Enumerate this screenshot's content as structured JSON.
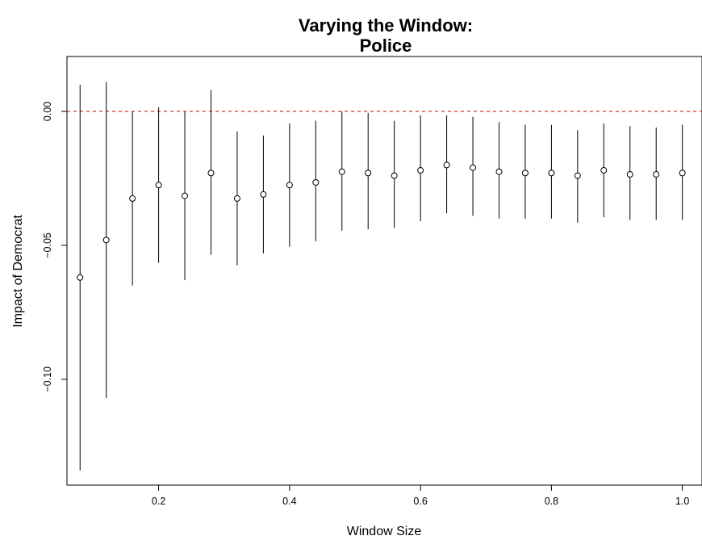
{
  "chart_data": {
    "type": "scatter",
    "title_line1": "Varying the Window:",
    "title_line2": "Police",
    "xlabel": "Window Size",
    "ylabel": "Impact of Democrat",
    "xlim": [
      0.06,
      1.03
    ],
    "ylim": [
      -0.1395,
      0.0205
    ],
    "x_ticks": [
      {
        "value": 0.2,
        "label": "0.2"
      },
      {
        "value": 0.4,
        "label": "0.4"
      },
      {
        "value": 0.6,
        "label": "0.6"
      },
      {
        "value": 0.8,
        "label": "0.8"
      },
      {
        "value": 1.0,
        "label": "1.0"
      }
    ],
    "y_ticks": [
      {
        "value": 0.0,
        "label": "0.00"
      },
      {
        "value": -0.05,
        "label": "−0.05"
      },
      {
        "value": -0.1,
        "label": "−0.10"
      }
    ],
    "reference_line": {
      "y": 0.0,
      "color": "#cc0000",
      "style": "dashed"
    },
    "points": [
      {
        "x": 0.08,
        "y": -0.062,
        "low": -0.134,
        "high": 0.01
      },
      {
        "x": 0.12,
        "y": -0.048,
        "low": -0.107,
        "high": 0.011
      },
      {
        "x": 0.16,
        "y": -0.0325,
        "low": -0.065,
        "high": 0.0
      },
      {
        "x": 0.2,
        "y": -0.0275,
        "low": -0.0565,
        "high": 0.0015
      },
      {
        "x": 0.24,
        "y": -0.0315,
        "low": -0.063,
        "high": 0.0
      },
      {
        "x": 0.28,
        "y": -0.023,
        "low": -0.0535,
        "high": 0.008
      },
      {
        "x": 0.32,
        "y": -0.0325,
        "low": -0.0575,
        "high": -0.0075
      },
      {
        "x": 0.36,
        "y": -0.031,
        "low": -0.053,
        "high": -0.009
      },
      {
        "x": 0.4,
        "y": -0.0275,
        "low": -0.0505,
        "high": -0.0045
      },
      {
        "x": 0.44,
        "y": -0.0265,
        "low": -0.0485,
        "high": -0.0035
      },
      {
        "x": 0.48,
        "y": -0.0225,
        "low": -0.0445,
        "high": 0.0
      },
      {
        "x": 0.52,
        "y": -0.023,
        "low": -0.044,
        "high": -0.0005
      },
      {
        "x": 0.56,
        "y": -0.024,
        "low": -0.0435,
        "high": -0.0035
      },
      {
        "x": 0.6,
        "y": -0.022,
        "low": -0.041,
        "high": -0.0015
      },
      {
        "x": 0.64,
        "y": -0.02,
        "low": -0.038,
        "high": -0.0015
      },
      {
        "x": 0.68,
        "y": -0.021,
        "low": -0.039,
        "high": -0.002
      },
      {
        "x": 0.72,
        "y": -0.0225,
        "low": -0.04,
        "high": -0.004
      },
      {
        "x": 0.76,
        "y": -0.023,
        "low": -0.04,
        "high": -0.005
      },
      {
        "x": 0.8,
        "y": -0.023,
        "low": -0.04,
        "high": -0.005
      },
      {
        "x": 0.84,
        "y": -0.024,
        "low": -0.0415,
        "high": -0.007
      },
      {
        "x": 0.88,
        "y": -0.022,
        "low": -0.0395,
        "high": -0.0045
      },
      {
        "x": 0.92,
        "y": -0.0235,
        "low": -0.0405,
        "high": -0.0055
      },
      {
        "x": 0.96,
        "y": -0.0235,
        "low": -0.0405,
        "high": -0.006
      },
      {
        "x": 1.0,
        "y": -0.023,
        "low": -0.0405,
        "high": -0.005
      }
    ],
    "grid": false,
    "legend": "none"
  }
}
